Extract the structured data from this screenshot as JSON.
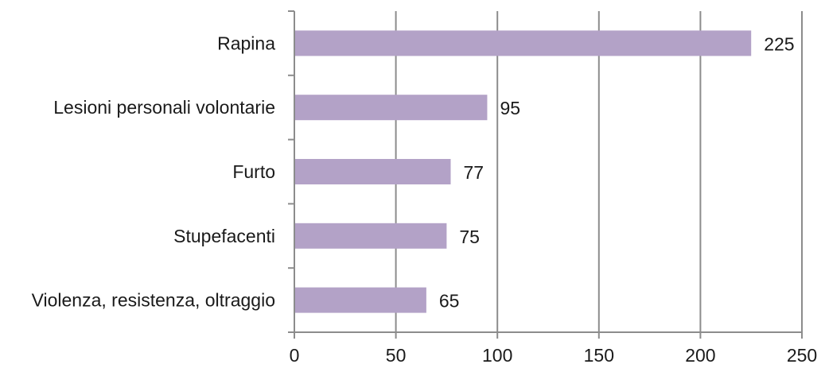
{
  "chart_data": {
    "type": "bar",
    "orientation": "horizontal",
    "categories": [
      "Rapina",
      "Lesioni personali volontarie",
      "Furto",
      "Stupefacenti",
      "Violenza, resistenza, oltraggio"
    ],
    "values": [
      225,
      95,
      77,
      75,
      65
    ],
    "data_labels": [
      "225",
      "95",
      "77",
      "75",
      "65"
    ],
    "x_ticks": [
      0,
      50,
      100,
      150,
      200,
      250
    ],
    "x_tick_labels": [
      "0",
      "50",
      "100",
      "150",
      "200",
      "250"
    ],
    "xlim": [
      0,
      250
    ],
    "title": "",
    "xlabel": "",
    "ylabel": "",
    "grid": "vertical",
    "legend": "none",
    "colors": {
      "bar": "#b3a2c7",
      "grid": "#8c8c8c",
      "text": "#1a1a1a"
    }
  }
}
